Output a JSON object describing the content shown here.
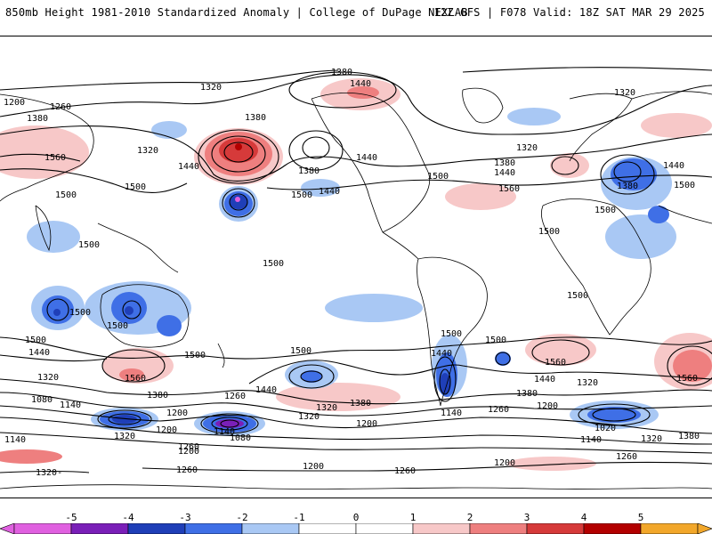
{
  "header": {
    "title_left": "850mb Height 1981-2010 Standardized Anomaly | College of DuPage NEXLAB",
    "title_right": "12Z GFS | F078 Valid: 18Z SAT MAR 29 2025"
  },
  "colors": {
    "neg5": "#e060e0",
    "neg4": "#7a1fb8",
    "neg3": "#1f3fb8",
    "neg2": "#3f6fe6",
    "neg1": "#a9c8f4",
    "neutral": "#ffffff",
    "pos1": "#f7c8c8",
    "pos2": "#ee7f7f",
    "pos3": "#d63a3a",
    "pos4": "#b30000",
    "pos5": "#f2a72a",
    "contour": "#000000",
    "coast": "#000000"
  },
  "legend": {
    "ticks": [
      "-5",
      "-4",
      "-3",
      "-2",
      "-1",
      "0",
      "1",
      "2",
      "3",
      "4",
      "5"
    ],
    "values": [
      -5,
      -4,
      -3,
      -2,
      -1,
      0,
      1,
      2,
      3,
      4,
      5
    ]
  },
  "contours": {
    "labels": [
      {
        "text": "1380"
      },
      {
        "text": "1440"
      },
      {
        "text": "1320"
      },
      {
        "text": "1200"
      },
      {
        "text": "1260"
      },
      {
        "text": "1380"
      },
      {
        "text": "1380"
      },
      {
        "text": "1320"
      },
      {
        "text": "1560"
      },
      {
        "text": "1440"
      },
      {
        "text": "1500"
      },
      {
        "text": "1500"
      },
      {
        "text": "1380"
      },
      {
        "text": "1500"
      },
      {
        "text": "1440"
      },
      {
        "text": "1440"
      },
      {
        "text": "1500"
      },
      {
        "text": "1320"
      },
      {
        "text": "1380"
      },
      {
        "text": "1440"
      },
      {
        "text": "1560"
      },
      {
        "text": "1500"
      },
      {
        "text": "1320"
      },
      {
        "text": "1380"
      },
      {
        "text": "1440"
      },
      {
        "text": "1500"
      },
      {
        "text": "1500"
      },
      {
        "text": "1500"
      },
      {
        "text": "1500"
      },
      {
        "text": "1500"
      },
      {
        "text": "1500"
      },
      {
        "text": "1500"
      },
      {
        "text": "1500"
      },
      {
        "text": "1500"
      },
      {
        "text": "1500"
      },
      {
        "text": "1440"
      },
      {
        "text": "1320"
      },
      {
        "text": "1080"
      },
      {
        "text": "1560"
      },
      {
        "text": "1380"
      },
      {
        "text": "1500"
      },
      {
        "text": "1440"
      },
      {
        "text": "1260"
      },
      {
        "text": "1320"
      },
      {
        "text": "1380"
      },
      {
        "text": "1440"
      },
      {
        "text": "1500"
      },
      {
        "text": "1560"
      },
      {
        "text": "1440"
      },
      {
        "text": "1380"
      },
      {
        "text": "1320"
      },
      {
        "text": "1560"
      },
      {
        "text": "1140"
      },
      {
        "text": "1320"
      },
      {
        "text": "1200"
      },
      {
        "text": "1140"
      },
      {
        "text": "1080"
      },
      {
        "text": "1260"
      },
      {
        "text": "1200"
      },
      {
        "text": "1320"
      },
      {
        "text": "1200"
      },
      {
        "text": "1140"
      },
      {
        "text": "1260"
      },
      {
        "text": "1200"
      },
      {
        "text": "1020"
      },
      {
        "text": "1140"
      },
      {
        "text": "1320"
      },
      {
        "text": "1380"
      },
      {
        "text": "1260"
      },
      {
        "text": "1200"
      },
      {
        "text": "1140"
      },
      {
        "text": "1320-"
      },
      {
        "text": "1260"
      },
      {
        "text": "1200"
      },
      {
        "text": "1260"
      },
      {
        "text": "1200"
      }
    ]
  }
}
